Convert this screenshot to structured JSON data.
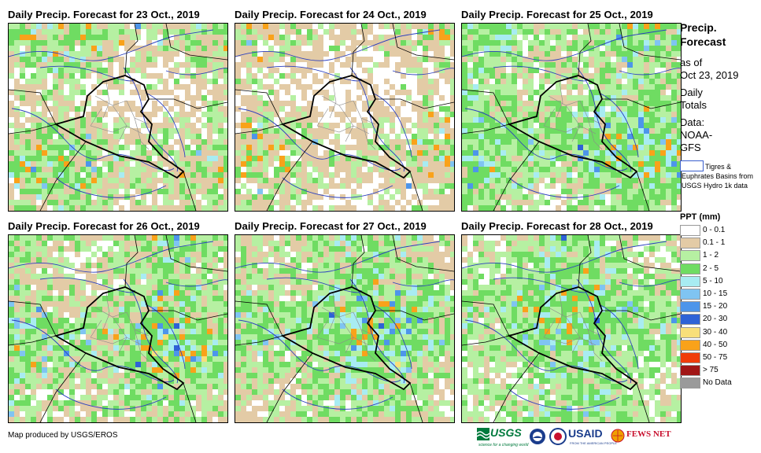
{
  "panels": [
    {
      "title": "Daily Precip. Forecast for 23 Oct., 2019",
      "day_index": 0
    },
    {
      "title": "Daily Precip. Forecast for 24 Oct., 2019",
      "day_index": 1
    },
    {
      "title": "Daily Precip. Forecast for 25 Oct., 2019",
      "day_index": 2
    },
    {
      "title": "Daily Precip. Forecast for 26 Oct., 2019",
      "day_index": 3
    },
    {
      "title": "Daily Precip. Forecast for 27 Oct., 2019",
      "day_index": 4
    },
    {
      "title": "Daily Precip. Forecast for 28 Oct., 2019",
      "day_index": 5
    }
  ],
  "legend": {
    "title_line1": "Precip.",
    "title_line2": "Forecast",
    "asof_line1": "as of",
    "asof_line2": "Oct 23, 2019",
    "totals_line1": "Daily",
    "totals_line2": "Totals",
    "data_line1": "Data:",
    "data_line2": "NOAA-",
    "data_line3": "GFS",
    "basin_text": "Tigres & Euphrates Basins from USGS Hydro 1k data",
    "ppt_title": "PPT (mm)",
    "items": [
      {
        "label": "0 - 0.1",
        "color": "#ffffff"
      },
      {
        "label": "0.1 - 1",
        "color": "#e3cba6"
      },
      {
        "label": "1 - 2",
        "color": "#b6f0a2"
      },
      {
        "label": "2 - 5",
        "color": "#6fdc62"
      },
      {
        "label": "5 - 10",
        "color": "#a8ecf2"
      },
      {
        "label": "10 - 15",
        "color": "#7fc4f2"
      },
      {
        "label": "15 - 20",
        "color": "#4d95ea"
      },
      {
        "label": "20 - 30",
        "color": "#2e62d6"
      },
      {
        "label": "30 - 40",
        "color": "#f8df7a"
      },
      {
        "label": "40 - 50",
        "color": "#f9a21a"
      },
      {
        "label": "50 - 75",
        "color": "#f03c0a"
      },
      {
        "label": "> 75",
        "color": "#a11616"
      },
      {
        "label": "No Data",
        "color": "#9a9a9a"
      }
    ]
  },
  "footer": {
    "credit": "Map produced by USGS/EROS",
    "logos": {
      "usgs": "USGS",
      "usgs_tag": "science for a changing world",
      "usaid": "USAID",
      "usaid_tag": "FROM THE AMERICAN PEOPLE",
      "fews": "FEWS NET"
    }
  },
  "colors": {
    "border": "#000000",
    "river": "#2b3fbf",
    "admin": "#8a8a8a"
  }
}
